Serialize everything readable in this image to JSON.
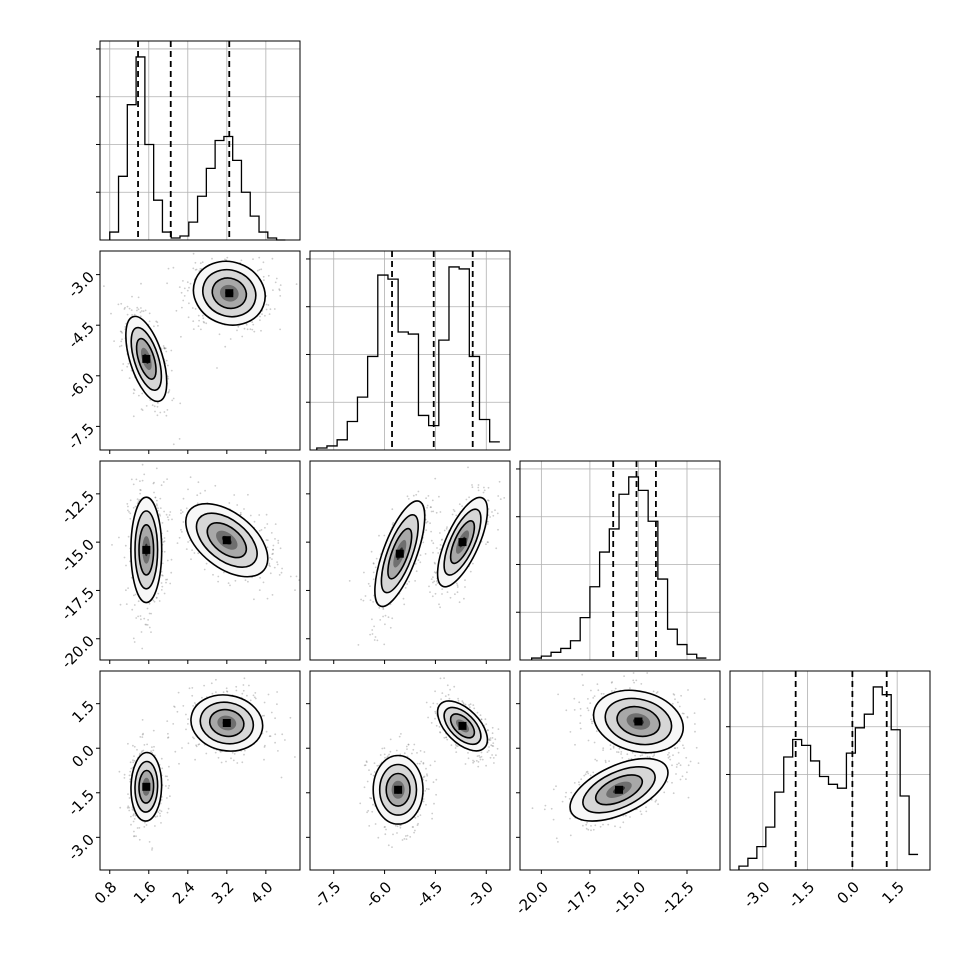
{
  "figure": {
    "type": "corner-plot",
    "parameters": 4,
    "colors": {
      "line": "#000000",
      "grid": "#b0b0b0",
      "scatter": "#6e6e6e",
      "density_fill": [
        "#f7f7f7",
        "#d6d6d6",
        "#a8a8a8",
        "#6f6f6f",
        "#2a2a2a",
        "#000000"
      ]
    }
  },
  "chart_data": {
    "type": "corner",
    "grid": true,
    "params": [
      {
        "id": "p0",
        "range": [
          0.6,
          4.7
        ],
        "ticks": [
          "0.8",
          "1.6",
          "2.4",
          "3.2",
          "4.0"
        ],
        "quantiles_dashed": [
          1.38,
          2.05,
          3.25
        ],
        "hist": {
          "bin_edges": [
            0.8,
            0.98,
            1.16,
            1.34,
            1.52,
            1.7,
            1.88,
            2.06,
            2.24,
            2.42,
            2.6,
            2.78,
            2.96,
            3.14,
            3.32,
            3.5,
            3.68,
            3.86,
            4.04,
            4.22,
            4.4
          ],
          "counts": [
            4,
            32,
            68,
            92,
            48,
            20,
            4,
            1,
            2,
            9,
            22,
            36,
            50,
            52,
            40,
            24,
            12,
            4,
            1,
            0
          ]
        }
      },
      {
        "id": "p1",
        "range": [
          -8.2,
          -2.3
        ],
        "ticks": [
          "-3.0",
          "-4.5",
          "-6.0",
          "-7.5"
        ],
        "ticks_bottom": [
          "-7.5",
          "-6.0",
          "-4.5",
          "-3.0"
        ],
        "quantiles_dashed": [
          -5.78,
          -4.55,
          -3.4
        ],
        "hist": {
          "bin_edges": [
            -8.0,
            -7.7,
            -7.4,
            -7.1,
            -6.8,
            -6.5,
            -6.2,
            -5.9,
            -5.6,
            -5.3,
            -5.0,
            -4.7,
            -4.4,
            -4.1,
            -3.8,
            -3.5,
            -3.2,
            -2.9,
            -2.6
          ],
          "counts": [
            1,
            2,
            5,
            14,
            26,
            46,
            86,
            84,
            58,
            57,
            17,
            12,
            54,
            90,
            89,
            46,
            15,
            4
          ]
        }
      },
      {
        "id": "p2",
        "range": [
          -21.1,
          -10.8
        ],
        "ticks": [
          "-12.5",
          "-15.0",
          "-17.5",
          "-20.0"
        ],
        "ticks_bottom": [
          "-20.0",
          "-17.5",
          "-15.0",
          "-12.5"
        ],
        "quantiles_dashed": [
          -16.3,
          -15.1,
          -14.1
        ],
        "hist": {
          "bin_edges": [
            -20.5,
            -20.0,
            -19.5,
            -19.0,
            -18.5,
            -18.0,
            -17.5,
            -17.0,
            -16.5,
            -16.0,
            -15.5,
            -15.0,
            -14.5,
            -14.0,
            -13.5,
            -13.0,
            -12.5,
            -12.0,
            -11.5
          ],
          "counts": [
            1,
            2,
            4,
            6,
            10,
            22,
            38,
            56,
            68,
            86,
            95,
            88,
            72,
            42,
            16,
            8,
            3,
            1
          ]
        }
      },
      {
        "id": "p3",
        "range": [
          -4.1,
          2.6
        ],
        "ticks": [
          "1.5",
          "0.0",
          "-1.5",
          "-3.0"
        ],
        "ticks_bottom": [
          "-3.0",
          "-1.5",
          "0.0",
          "1.5"
        ],
        "quantiles_dashed": [
          -1.9,
          0.0,
          1.15
        ],
        "hist": {
          "bin_edges": [
            -3.8,
            -3.5,
            -3.2,
            -2.9,
            -2.6,
            -2.3,
            -2.0,
            -1.7,
            -1.4,
            -1.1,
            -0.8,
            -0.5,
            -0.2,
            0.1,
            0.4,
            0.7,
            1.0,
            1.3,
            1.6,
            1.9,
            2.2
          ],
          "counts": [
            2,
            6,
            12,
            22,
            40,
            58,
            67,
            64,
            56,
            48,
            44,
            42,
            60,
            73,
            80,
            94,
            90,
            72,
            38,
            8
          ]
        }
      }
    ],
    "panels_2d": [
      {
        "x": 0,
        "y": 1,
        "clusters": [
          {
            "mx": 1.55,
            "my": -5.5,
            "sx": 0.2,
            "sy": 0.6,
            "rho": -0.55
          },
          {
            "mx": 3.25,
            "my": -3.55,
            "sx": 0.35,
            "sy": 0.45,
            "rho": -0.1
          }
        ]
      },
      {
        "x": 0,
        "y": 2,
        "clusters": [
          {
            "mx": 1.55,
            "my": -15.4,
            "sx": 0.15,
            "sy": 1.3,
            "rho": 0.0
          },
          {
            "mx": 3.2,
            "my": -14.9,
            "sx": 0.4,
            "sy": 0.9,
            "rho": -0.5
          }
        ]
      },
      {
        "x": 1,
        "y": 2,
        "clusters": [
          {
            "mx": -5.55,
            "my": -15.6,
            "sx": 0.35,
            "sy": 1.3,
            "rho": 0.7
          },
          {
            "mx": -3.7,
            "my": -15.0,
            "sx": 0.35,
            "sy": 1.1,
            "rho": 0.7
          }
        ]
      },
      {
        "x": 0,
        "y": 3,
        "clusters": [
          {
            "mx": 1.55,
            "my": -1.3,
            "sx": 0.15,
            "sy": 0.55,
            "rho": 0.05
          },
          {
            "mx": 3.2,
            "my": 0.85,
            "sx": 0.35,
            "sy": 0.45,
            "rho": -0.1
          }
        ]
      },
      {
        "x": 1,
        "y": 3,
        "clusters": [
          {
            "mx": -5.6,
            "my": -1.4,
            "sx": 0.35,
            "sy": 0.55,
            "rho": 0.0
          },
          {
            "mx": -3.7,
            "my": 0.75,
            "sx": 0.35,
            "sy": 0.4,
            "rho": -0.55
          }
        ]
      },
      {
        "x": 2,
        "y": 3,
        "clusters": [
          {
            "mx": -15.0,
            "my": 0.9,
            "sx": 1.1,
            "sy": 0.5,
            "rho": -0.2
          },
          {
            "mx": -16.0,
            "my": -1.4,
            "sx": 1.2,
            "sy": 0.5,
            "rho": 0.55
          }
        ]
      }
    ]
  }
}
